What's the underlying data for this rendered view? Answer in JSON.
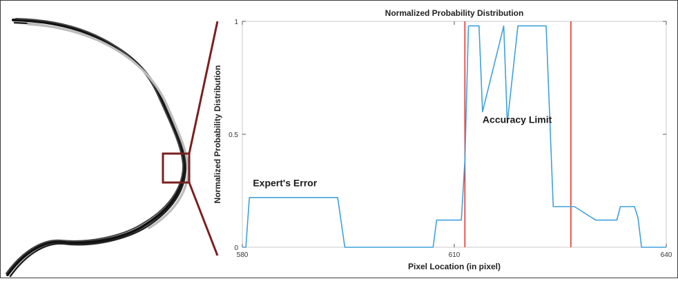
{
  "chart_data": {
    "type": "line",
    "title": "Normalized Probability Distribution",
    "xlabel": "Pixel Location (in pixel)",
    "ylabel": "Normalized Probability Distribution",
    "xlim": [
      580,
      640
    ],
    "ylim": [
      0,
      1
    ],
    "x_ticks": [
      580,
      610,
      640
    ],
    "x_tick_labels": [
      "580",
      "610",
      "640"
    ],
    "y_ticks": [
      0,
      0.5,
      1
    ],
    "y_tick_labels": [
      "0",
      "0.5",
      "1"
    ],
    "grid": false,
    "series": [
      {
        "color": "#3fa0dc",
        "points": [
          [
            580,
            0
          ],
          [
            580.5,
            0
          ],
          [
            581,
            0.22
          ],
          [
            593.5,
            0.22
          ],
          [
            594.5,
            0
          ],
          [
            607,
            0
          ],
          [
            607.5,
            0.12
          ],
          [
            611,
            0.12
          ],
          [
            611.5,
            0.39
          ],
          [
            612,
            0.98
          ],
          [
            613.5,
            0.98
          ],
          [
            614,
            0.6
          ],
          [
            617,
            0.98
          ],
          [
            617.5,
            0.55
          ],
          [
            619,
            0.98
          ],
          [
            623,
            0.98
          ],
          [
            624,
            0.18
          ],
          [
            627,
            0.18
          ],
          [
            630,
            0.12
          ],
          [
            633,
            0.12
          ],
          [
            633.5,
            0.18
          ],
          [
            635.5,
            0.18
          ],
          [
            636,
            0.13
          ],
          [
            636.5,
            0
          ],
          [
            640,
            0
          ]
        ]
      }
    ],
    "vertical_lines": [
      {
        "x": 611.5,
        "color": "#e8322e"
      },
      {
        "x": 626.5,
        "color": "#e8322e"
      }
    ],
    "annotations": [
      {
        "text": "Expert's Error",
        "x": 581.5,
        "y": 0.27
      },
      {
        "text": "Accuracy Limit",
        "x": 614,
        "y": 0.55
      }
    ]
  },
  "inset": {
    "highlight_color": "#7a1f1f",
    "contour_color": "#111111"
  }
}
